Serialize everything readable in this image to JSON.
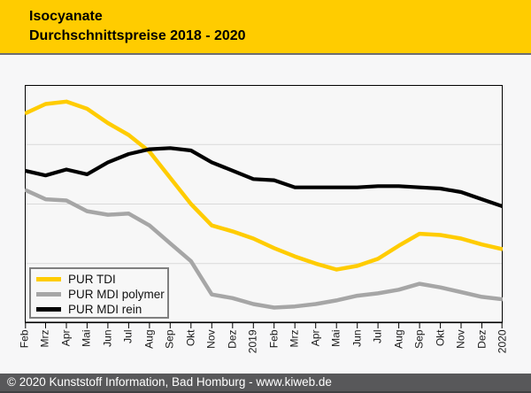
{
  "header": {
    "title_line1": "Isocyanate",
    "title_line2": "Durchschnittspreise 2018 - 2020",
    "bg_color": "#FFCC00",
    "text_color": "#000000"
  },
  "footer": {
    "text": "© 2020 Kunststoff Information, Bad Homburg - www.kiweb.de",
    "bg_color": "#58585A",
    "text_color": "#FFFFFF"
  },
  "colors": {
    "page_bg": "#F7F7F8",
    "plot_bg": "#F7F7F7",
    "plot_border": "#000000",
    "gridline": "#D9D9D9",
    "header_separator": "#6E6E72"
  },
  "chart_data": {
    "type": "line",
    "title": "Isocyanate Durchschnittspreise 2018 - 2020",
    "xlabel": "",
    "ylabel": "",
    "y_axis_labels_visible": false,
    "x_tick_label_rotation": -90,
    "grid": "horizontal",
    "gridlines_y": [
      25,
      50,
      75
    ],
    "ylim": [
      0,
      100
    ],
    "legend_position": "bottom-left",
    "categories": [
      "Feb",
      "Mrz",
      "Apr",
      "Mai",
      "Jun",
      "Jul",
      "Aug",
      "Sep",
      "Okt",
      "Nov",
      "Dez",
      "2019",
      "Feb",
      "Mrz",
      "Apr",
      "Mai",
      "Jun",
      "Jul",
      "Aug",
      "Sep",
      "Okt",
      "Nov",
      "Dez",
      "2020"
    ],
    "series": [
      {
        "name": "PUR TDI",
        "color": "#FFCC00",
        "values": [
          88,
          92,
          93,
          90,
          84,
          79,
          72,
          61,
          50,
          41,
          38.5,
          35.5,
          31.5,
          28,
          25,
          22.5,
          24,
          27,
          32.5,
          37.5,
          37,
          35.5,
          33,
          31
        ]
      },
      {
        "name": "PUR MDI polymer",
        "color": "#A6A6A6",
        "values": [
          56,
          52,
          51.5,
          47,
          45.5,
          46,
          41,
          33.5,
          26,
          12,
          10.5,
          8,
          6.5,
          7,
          8,
          9.5,
          11.5,
          12.5,
          14,
          16.5,
          15,
          13,
          11,
          10
        ]
      },
      {
        "name": "PUR MDI rein",
        "color": "#000000",
        "values": [
          64,
          62,
          64.5,
          62.5,
          67.5,
          71,
          73,
          73.5,
          72.5,
          67.5,
          64,
          60.5,
          60,
          57,
          57,
          57,
          57,
          57.5,
          57.5,
          57,
          56.5,
          55,
          52,
          49
        ]
      }
    ]
  }
}
